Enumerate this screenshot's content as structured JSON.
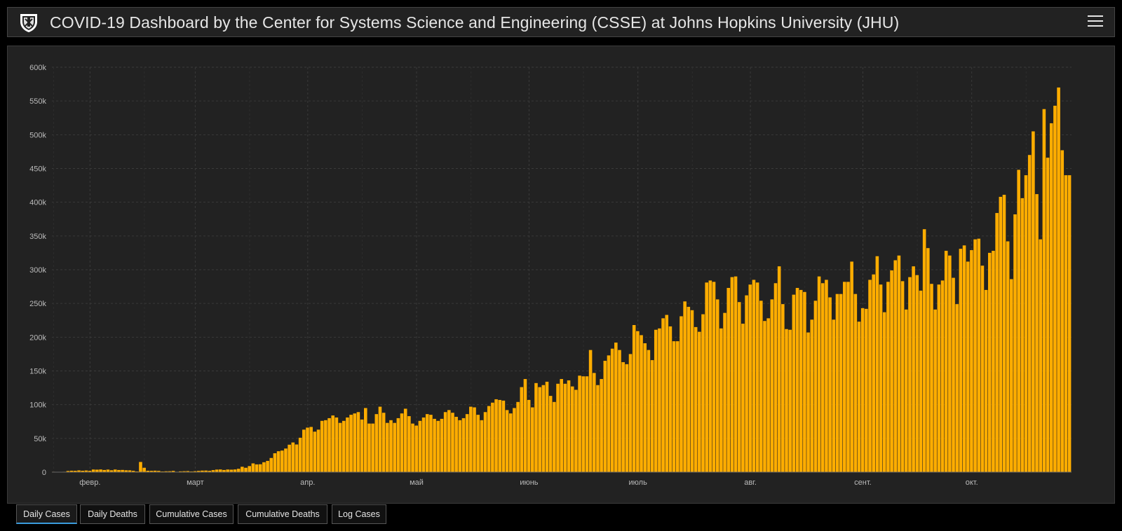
{
  "header": {
    "title": "COVID-19 Dashboard by the Center for Systems Science and Engineering (CSSE) at Johns Hopkins University (JHU)",
    "logo_icon": "jhu-shield-icon",
    "menu_icon": "hamburger-menu-icon"
  },
  "tabs": [
    {
      "label": "Daily Cases",
      "active": true
    },
    {
      "label": "Daily Deaths",
      "active": false
    },
    {
      "label": "Cumulative Cases",
      "active": false
    },
    {
      "label": "Cumulative Deaths",
      "active": false
    },
    {
      "label": "Log Cases",
      "active": false
    }
  ],
  "colors": {
    "bar": "#ffad00",
    "panel": "#222222",
    "grid": "#3a3a3a",
    "text": "#bbbbbb",
    "tab_active": "#3a9bdc"
  },
  "chart_data": {
    "type": "bar",
    "title": "",
    "xlabel": "",
    "ylabel": "",
    "ylim": [
      0,
      600000
    ],
    "yticks": [
      {
        "value": 0,
        "label": "0"
      },
      {
        "value": 50000,
        "label": "50k"
      },
      {
        "value": 100000,
        "label": "100k"
      },
      {
        "value": 150000,
        "label": "150k"
      },
      {
        "value": 200000,
        "label": "200k"
      },
      {
        "value": 250000,
        "label": "250k"
      },
      {
        "value": 300000,
        "label": "300k"
      },
      {
        "value": 350000,
        "label": "350k"
      },
      {
        "value": 400000,
        "label": "400k"
      },
      {
        "value": 450000,
        "label": "450k"
      },
      {
        "value": 500000,
        "label": "500k"
      },
      {
        "value": 550000,
        "label": "550k"
      },
      {
        "value": 600000,
        "label": "600k"
      }
    ],
    "xticks": [
      {
        "label": "февр.",
        "index": 10
      },
      {
        "label": "март",
        "index": 39
      },
      {
        "label": "апр.",
        "index": 70
      },
      {
        "label": "май",
        "index": 100
      },
      {
        "label": "июнь",
        "index": 131
      },
      {
        "label": "июль",
        "index": 161
      },
      {
        "label": "авг.",
        "index": 192
      },
      {
        "label": "сент.",
        "index": 223
      },
      {
        "label": "окт.",
        "index": 253
      }
    ],
    "grid": true,
    "series": [
      {
        "values": [
          555,
          95,
          277,
          580,
          1752,
          2133,
          2034,
          2600,
          2066,
          2500,
          2009,
          3900,
          3700,
          4000,
          3200,
          3800,
          2800,
          3900,
          3200,
          3300,
          2800,
          2700,
          2000,
          1000,
          15100,
          6500,
          2100,
          2000,
          2200,
          1900,
          1000,
          1300,
          1400,
          1900,
          600,
          1200,
          1400,
          1600,
          1000,
          1400,
          1900,
          2300,
          2400,
          2000,
          3000,
          3800,
          4000,
          3200,
          3900,
          3700,
          4000,
          5000,
          8000,
          6500,
          9000,
          13000,
          11500,
          11700,
          14700,
          16700,
          21000,
          28000,
          31000,
          32000,
          35000,
          40700,
          44000,
          41000,
          51000,
          63000,
          66000,
          67000,
          60000,
          63000,
          76000,
          77000,
          80000,
          84000,
          81000,
          73000,
          76000,
          81000,
          85000,
          87000,
          89000,
          78000,
          95000,
          72000,
          72000,
          86000,
          97000,
          88000,
          73000,
          77000,
          73000,
          80000,
          87000,
          94000,
          83000,
          72000,
          69000,
          76000,
          81000,
          86000,
          85000,
          79000,
          76000,
          79000,
          89000,
          92000,
          88000,
          82000,
          77000,
          80000,
          86000,
          97000,
          96000,
          85000,
          77000,
          89000,
          98000,
          103000,
          108000,
          107000,
          106000,
          92000,
          87000,
          95000,
          104000,
          126000,
          138000,
          107000,
          96000,
          132000,
          126000,
          129000,
          134000,
          113000,
          104000,
          131000,
          138000,
          131000,
          136000,
          127000,
          122000,
          143000,
          142000,
          142000,
          181000,
          147000,
          129000,
          138000,
          165000,
          173000,
          183000,
          192000,
          181000,
          163000,
          160000,
          175000,
          218000,
          209000,
          203000,
          191000,
          181000,
          166000,
          211000,
          213000,
          228000,
          233000,
          216000,
          194000,
          194000,
          231000,
          253000,
          245000,
          240000,
          215000,
          208000,
          234000,
          281000,
          284000,
          282000,
          256000,
          213000,
          236000,
          273000,
          289000,
          290000,
          252000,
          220000,
          262000,
          278000,
          285000,
          281000,
          254000,
          224000,
          228000,
          256000,
          280000,
          305000,
          249000,
          212000,
          211000,
          263000,
          273000,
          270000,
          267000,
          207000,
          226000,
          254000,
          290000,
          280000,
          285000,
          259000,
          226000,
          264000,
          264000,
          282000,
          282000,
          312000,
          264000,
          223000,
          243000,
          242000,
          285000,
          293000,
          320000,
          278000,
          237000,
          282000,
          299000,
          314000,
          321000,
          283000,
          241000,
          289000,
          305000,
          292000,
          269000,
          360000,
          332000,
          279000,
          241000,
          278000,
          284000,
          328000,
          321000,
          288000,
          249000,
          331000,
          336000,
          312000,
          329000,
          345000,
          346000,
          306000,
          270000,
          325000,
          328000,
          384000,
          408000,
          411000,
          342000,
          286000,
          382000,
          448000,
          406000,
          440000,
          470000,
          505000,
          412000,
          345000,
          538000,
          466000,
          517000,
          543000,
          570000,
          477000,
          440000,
          440000
        ]
      }
    ]
  }
}
